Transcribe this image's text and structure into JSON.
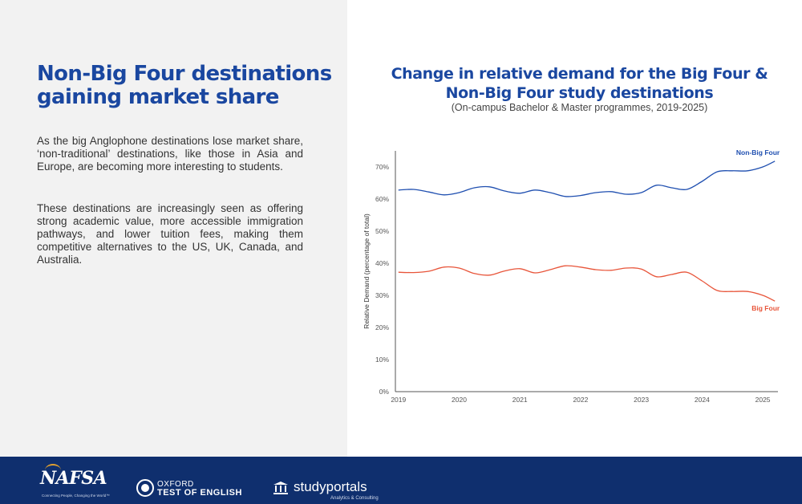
{
  "left": {
    "headline_line1": "Non-Big Four destinations",
    "headline_line2": "gaining market share",
    "paragraph1": "As the big Anglophone destinations lose market share, ‘non-traditional’ destinations, like those in Asia and Europe, are becoming more interesting to students.",
    "paragraph2": "These destinations are increasingly seen as offering strong academic value, more accessible immigration pathways, and lower tuition fees, making them competitive alternatives to the US, UK, Canada, and Australia."
  },
  "chart_data": {
    "type": "line",
    "title_line1": "Change in relative demand for the Big Four &",
    "title_line2": "Non-Big Four study destinations",
    "subtitle": "(On-campus Bachelor & Master programmes, 2019-2025)",
    "xlabel": "",
    "ylabel": "Relative Demand (percentage of total)",
    "xlim": [
      2018.95,
      2025.25
    ],
    "ylim": [
      0,
      75
    ],
    "x_ticks": [
      2019,
      2020,
      2021,
      2022,
      2023,
      2024,
      2025
    ],
    "y_ticks": [
      0,
      10,
      20,
      30,
      40,
      50,
      60,
      70
    ],
    "y_tick_labels": [
      "0%",
      "10%",
      "20%",
      "30%",
      "40%",
      "50%",
      "60%",
      "70%"
    ],
    "x": [
      2019.0,
      2019.25,
      2019.5,
      2019.75,
      2020.0,
      2020.25,
      2020.5,
      2020.75,
      2021.0,
      2021.25,
      2021.5,
      2021.75,
      2022.0,
      2022.25,
      2022.5,
      2022.75,
      2023.0,
      2023.25,
      2023.5,
      2023.75,
      2024.0,
      2024.25,
      2024.5,
      2024.75,
      2025.0,
      2025.2
    ],
    "series": [
      {
        "name": "Non-Big Four",
        "color": "#1f4fb0",
        "values": [
          62.8,
          63.0,
          62.2,
          61.3,
          62.0,
          63.5,
          63.8,
          62.5,
          61.8,
          62.8,
          62.0,
          60.8,
          61.1,
          62.0,
          62.3,
          61.5,
          62.0,
          64.3,
          63.5,
          63.0,
          65.5,
          68.5,
          68.8,
          68.8,
          70.0,
          71.8
        ]
      },
      {
        "name": "Big Four",
        "color": "#e8553a",
        "values": [
          37.2,
          37.1,
          37.5,
          38.8,
          38.5,
          36.8,
          36.3,
          37.6,
          38.3,
          37.0,
          38.0,
          39.2,
          38.8,
          38.0,
          37.8,
          38.5,
          38.2,
          35.8,
          36.5,
          37.2,
          34.5,
          31.5,
          31.2,
          31.2,
          30.0,
          28.2
        ]
      }
    ]
  },
  "footer": {
    "nafsa_logo": "NAFSA",
    "nafsa_tagline": "Connecting People, Changing the World™",
    "ote_line1": "OXFORD",
    "ote_line2": "TEST OF ENGLISH",
    "sp_logo": "studyportals",
    "sp_sub": "Analytics & Consulting",
    "bg_color": "#0f2f6e"
  }
}
